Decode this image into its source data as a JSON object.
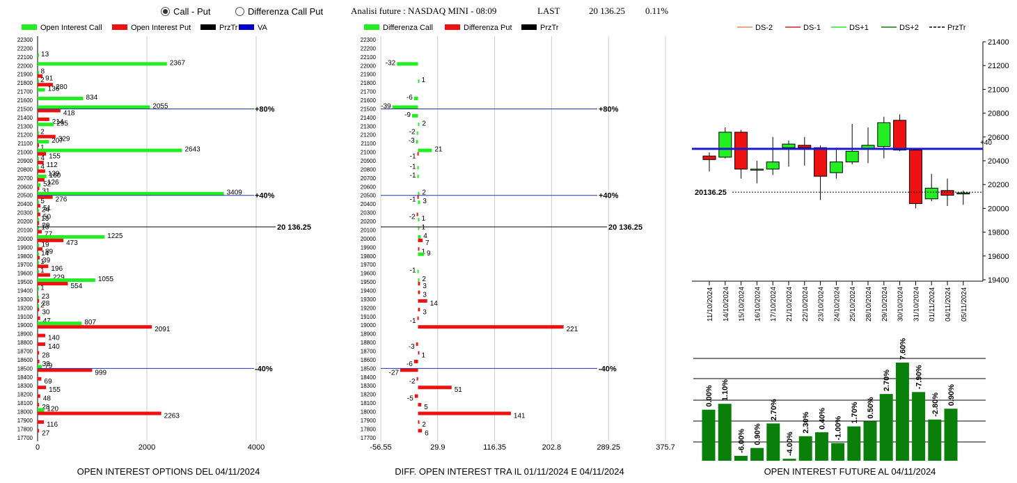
{
  "header": {
    "radio_call_put": "Call - Put",
    "radio_diff": "Differenza Call Put",
    "selected": "call_put",
    "title": "Analisi future : NASDAQ MINI - 08:09",
    "last_label": "LAST",
    "last_value": "20 136.25",
    "change": "0.11%"
  },
  "colors": {
    "green": "#22ee22",
    "red": "#ee1111",
    "black": "#000000",
    "blue": "#0000cc",
    "darkgreen": "#0a800a"
  },
  "chart_data": [
    {
      "type": "bar",
      "id": "open-interest-options",
      "title": "OPEN INTEREST OPTIONS DEL 04/11/2024",
      "legend": [
        "Open Interest Call",
        "Open Interest Put",
        "PrzTr",
        "VA"
      ],
      "categories": [
        22300,
        22200,
        22100,
        22000,
        21900,
        21800,
        21700,
        21600,
        21500,
        21400,
        21300,
        21200,
        21100,
        21000,
        20900,
        20800,
        20700,
        20600,
        20500,
        20400,
        20300,
        20200,
        20100,
        20000,
        19900,
        19800,
        19700,
        19600,
        19500,
        19400,
        19300,
        19200,
        19100,
        19000,
        18900,
        18800,
        18700,
        18600,
        18500,
        18400,
        18300,
        18200,
        18100,
        18000,
        17900,
        17800,
        17700
      ],
      "series": [
        {
          "name": "Open Interest Call",
          "values": [
            0,
            0,
            13,
            2367,
            8,
            2,
            136,
            834,
            2055,
            0,
            295,
            2,
            207,
            2643,
            4,
            4,
            160,
            52,
            3409,
            5,
            24,
            13,
            16,
            1225,
            19,
            14,
            1,
            1,
            1055,
            1,
            23,
            2,
            0,
            807,
            0,
            0,
            0,
            0,
            79,
            0,
            0,
            0,
            0,
            120,
            0,
            0,
            0
          ]
        },
        {
          "name": "Open Interest Put",
          "values": [
            0,
            0,
            0,
            0,
            91,
            280,
            0,
            0,
            418,
            214,
            0,
            329,
            1,
            155,
            112,
            139,
            126,
            31,
            276,
            51,
            50,
            29,
            77,
            473,
            89,
            39,
            196,
            229,
            554,
            0,
            28,
            30,
            47,
            2091,
            140,
            140,
            28,
            33,
            999,
            69,
            155,
            48,
            28,
            2263,
            116,
            27,
            0
          ]
        }
      ],
      "xticks": [
        0,
        2000,
        4000
      ],
      "xlim": [
        0,
        4500
      ],
      "reference_lines": [
        {
          "level": 21500,
          "label": "+80%"
        },
        {
          "level": 20500,
          "label": "+40%"
        },
        {
          "level": 18500,
          "label": "-40%"
        }
      ],
      "price_line": {
        "level": 20136.25,
        "label": "20 136.25"
      }
    },
    {
      "type": "bar",
      "id": "diff-open-interest",
      "title": "DIFF. OPEN INTEREST TRA IL 01/11/2024 E 04/11/2024",
      "legend": [
        "Differenza Call",
        "Differenza Put",
        "PrzTr"
      ],
      "categories": [
        22300,
        22200,
        22100,
        22000,
        21900,
        21800,
        21700,
        21600,
        21500,
        21400,
        21300,
        21200,
        21100,
        21000,
        20900,
        20800,
        20700,
        20600,
        20500,
        20400,
        20300,
        20200,
        20100,
        20000,
        19900,
        19800,
        19700,
        19600,
        19500,
        19400,
        19300,
        19200,
        19100,
        19000,
        18900,
        18800,
        18700,
        18600,
        18500,
        18400,
        18300,
        18200,
        18100,
        18000,
        17900,
        17800,
        17700
      ],
      "series": [
        {
          "name": "Differenza Call",
          "values": [
            0,
            0,
            0,
            -32,
            0,
            1,
            0,
            -6,
            -39,
            -9,
            2,
            -2,
            -3,
            21,
            0,
            -1,
            -1,
            0,
            2,
            3,
            0,
            1,
            1,
            4,
            0,
            9,
            0,
            -1,
            2,
            0,
            0,
            0,
            0,
            0,
            0,
            0,
            0,
            0,
            0,
            0,
            0,
            0,
            0,
            0,
            0,
            0,
            0
          ]
        },
        {
          "name": "Differenza Put",
          "values": [
            0,
            0,
            0,
            0,
            0,
            0,
            0,
            0,
            0,
            0,
            0,
            0,
            0,
            -1,
            0,
            0,
            0,
            0,
            -1,
            0,
            -2,
            0,
            0,
            7,
            1,
            0,
            0,
            0,
            3,
            3,
            14,
            3,
            -1,
            221,
            0,
            -3,
            1,
            -6,
            -27,
            -2,
            51,
            -5,
            5,
            141,
            2,
            6,
            0
          ]
        }
      ],
      "xticks": [
        -56.55,
        29.9,
        116.35,
        202.8,
        289.25,
        375.7
      ],
      "xlim": [
        -56.55,
        375.7
      ],
      "reference_lines": [
        {
          "level": 21500,
          "label": "+80%"
        },
        {
          "level": 20500,
          "label": "+40%"
        },
        {
          "level": 18500,
          "label": "-40%"
        }
      ],
      "price_line": {
        "level": 20136.25,
        "label": "20 136.25"
      }
    },
    {
      "type": "candlestick",
      "id": "future-candles",
      "legend": [
        "DS-2",
        "DS-1",
        "DS+1",
        "DS+2",
        "PrzTr"
      ],
      "categories": [
        "11/10/2024",
        "14/10/2024",
        "15/10/2024",
        "16/10/2024",
        "17/10/2024",
        "21/10/2024",
        "22/10/2024",
        "23/10/2024",
        "24/10/2024",
        "25/10/2024",
        "28/10/2024",
        "29/10/2024",
        "30/10/2024",
        "31/10/2024",
        "01/11/2024",
        "04/11/2024",
        "05/11/2024"
      ],
      "ohlc": [
        [
          20440,
          20470,
          20310,
          20410
        ],
        [
          20430,
          20680,
          20420,
          20640
        ],
        [
          20640,
          20660,
          20250,
          20330
        ],
        [
          20330,
          20400,
          20210,
          20330
        ],
        [
          20330,
          20600,
          20280,
          20390
        ],
        [
          20510,
          20570,
          20350,
          20540
        ],
        [
          20530,
          20600,
          20360,
          20510
        ],
        [
          20510,
          20530,
          20070,
          20270
        ],
        [
          20300,
          20510,
          20250,
          20390
        ],
        [
          20390,
          20710,
          20370,
          20480
        ],
        [
          20500,
          20680,
          20380,
          20530
        ],
        [
          20520,
          20770,
          20420,
          20720
        ],
        [
          20740,
          20790,
          20480,
          20490
        ],
        [
          20490,
          20490,
          20000,
          20040
        ],
        [
          20080,
          20290,
          20060,
          20170
        ],
        [
          20150,
          20250,
          20020,
          20110
        ],
        [
          20130,
          20150,
          20030,
          20130
        ]
      ],
      "yticks": [
        21400,
        21200,
        21000,
        20800,
        20600,
        20400,
        20200,
        20000,
        19800,
        19600,
        19400
      ],
      "ylim": [
        19400,
        21400
      ],
      "va_line": {
        "level": 20500,
        "label": "+40"
      },
      "price_line": {
        "level": 20136.25,
        "label": "20136.25"
      }
    },
    {
      "type": "bar",
      "id": "open-interest-future",
      "title": "OPEN INTEREST FUTURE AL 04/11/2024",
      "values": [
        0.0,
        1.1,
        -6.0,
        0.9,
        2.7,
        -4.0,
        2.3,
        0.4,
        -1.0,
        1.7,
        0.5,
        2.7,
        7.6,
        -7.9,
        -2.8,
        0.9
      ],
      "labels": [
        "0.00%",
        "1.10%",
        "-6.00%",
        "0.90%",
        "2.70%",
        "-4.00%",
        "2.30%",
        "0.40%",
        "-1.00%",
        "1.70%",
        "0.50%",
        "2.70%",
        "7.60%",
        "-7.90%",
        "-2.80%",
        "0.90%"
      ],
      "heights": [
        0.52,
        0.58,
        0.05,
        0.13,
        0.38,
        0.02,
        0.25,
        0.29,
        0.18,
        0.35,
        0.4,
        0.68,
        1.0,
        0.7,
        0.42,
        0.53
      ]
    }
  ]
}
